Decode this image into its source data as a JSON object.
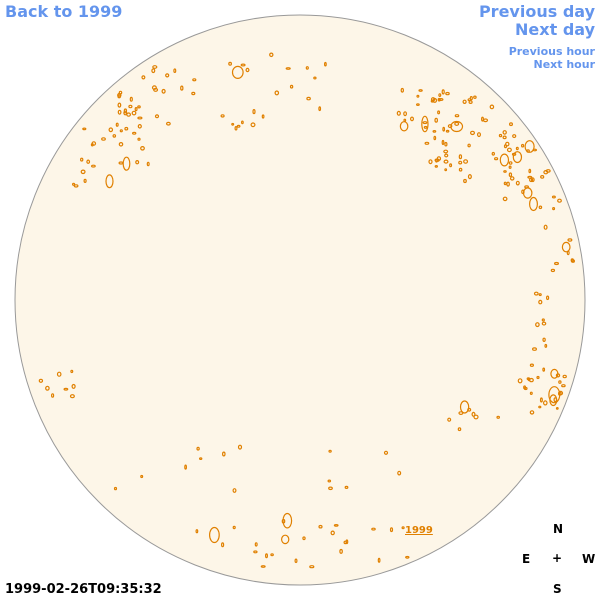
{
  "nav": {
    "back": "Back to 1999",
    "previous_day": "Previous day",
    "next_day": "Next day",
    "previous_hour": "Previous hour",
    "next_hour": "Next hour"
  },
  "timestamp": "1999-02-26T09:35:32",
  "year_link": "1999",
  "compass": {
    "n": "N",
    "e": "E",
    "center": "+",
    "w": "W",
    "s": "S"
  },
  "colors": {
    "disk_fill": "#fdf6e8",
    "disk_stroke": "#999999",
    "contour": "#e08000",
    "nav": "#6495ed"
  }
}
